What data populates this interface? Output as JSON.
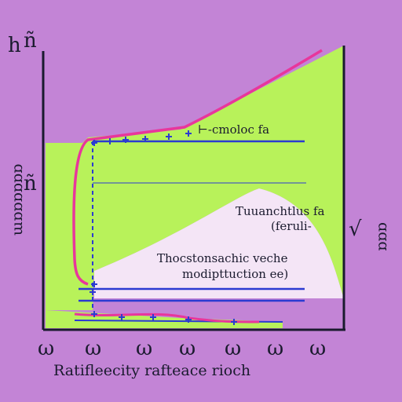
{
  "colors": {
    "background": "#c384d6",
    "fill": "#b8f25a",
    "curve": "#e8369c",
    "line": "#2b3bd1",
    "axis": "#1a1a2e",
    "paper": "#faf0fa"
  },
  "chart_data": {
    "type": "area",
    "xlabel": "Ratifleecity rafteace rioch",
    "ylabel_left": "ɯɒɒɒɒɒɒ",
    "ylabel_right": "ɒɒɒ",
    "y_top_marks": [
      "h",
      "ñ"
    ],
    "y_mid_mark": "ñ",
    "right_symbol": "√",
    "x_tick_labels": [
      "ω",
      "ω",
      "ω",
      "ω",
      "ω",
      "ω",
      "ω"
    ],
    "annotations": [
      {
        "text": "⊢-cmoloc fa"
      },
      {
        "text": "Tuuanchtlus fa"
      },
      {
        "text": "(feruli-"
      },
      {
        "text": "Thocstonsachic veche"
      },
      {
        "text": "modipttuction ee)"
      }
    ],
    "grid": false,
    "legend": "none"
  }
}
